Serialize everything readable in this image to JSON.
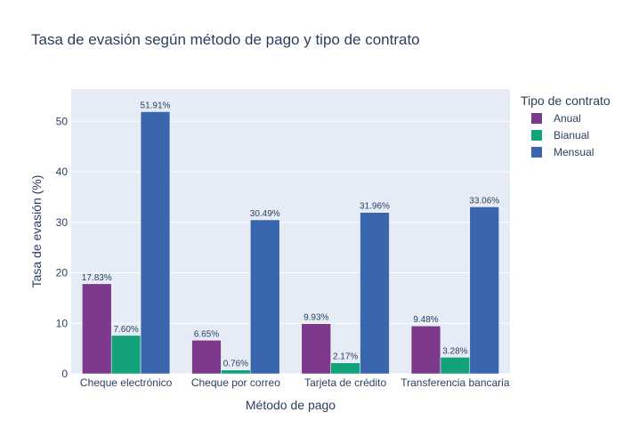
{
  "chart_data": {
    "type": "bar",
    "title": "Tasa de evasión según método de pago y tipo de contrato",
    "xlabel": "Método de pago",
    "ylabel": "Tasa de evasión (%)",
    "ylim": [
      0,
      56.4
    ],
    "yticks": [
      0,
      10,
      20,
      30,
      40,
      50
    ],
    "grid": true,
    "legend_placement": "top-right",
    "legend_title": "Tipo de contrato",
    "categories": [
      "Cheque electrónico",
      "Cheque por correo",
      "Tarjeta de crédito",
      "Transferencia bancaria"
    ],
    "series": [
      {
        "name": "Anual",
        "color": "#7d3a8c",
        "values": [
          17.83,
          6.65,
          9.93,
          9.48
        ],
        "labels": [
          "17.83%",
          "6.65%",
          "9.93%",
          "9.48%"
        ]
      },
      {
        "name": "Bianual",
        "color": "#13a37b",
        "values": [
          7.6,
          0.76,
          2.17,
          3.28
        ],
        "labels": [
          "7.60%",
          "0.76%",
          "2.17%",
          "3.28%"
        ]
      },
      {
        "name": "Mensual",
        "color": "#3966ad",
        "values": [
          51.91,
          30.49,
          31.96,
          33.06
        ],
        "labels": [
          "51.91%",
          "30.49%",
          "31.96%",
          "33.06%"
        ]
      }
    ]
  }
}
